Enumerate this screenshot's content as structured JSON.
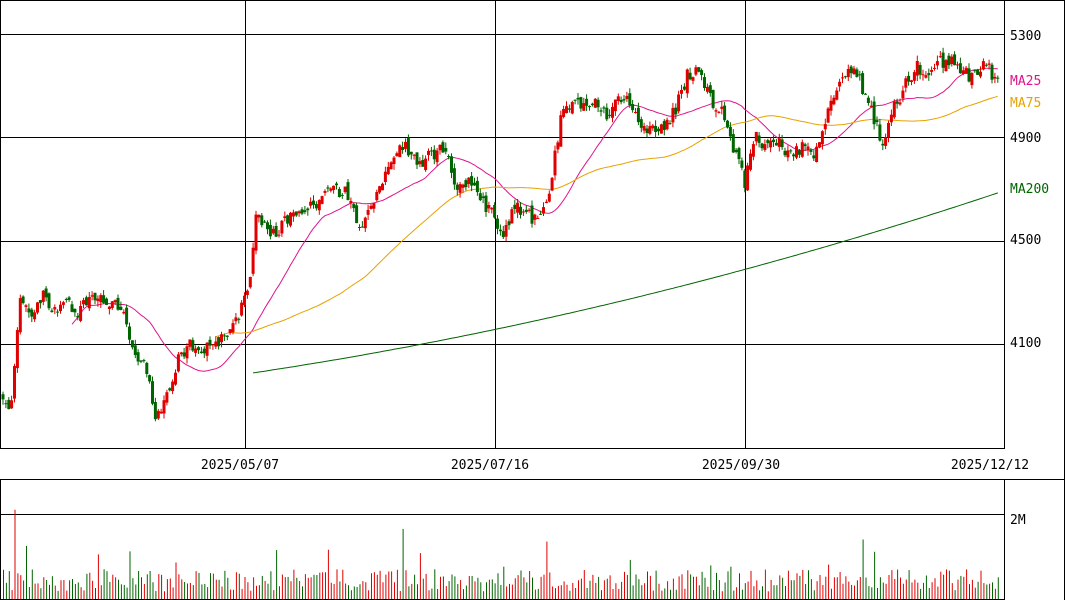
{
  "chart_data": {
    "type": "candlestick",
    "price_axis": {
      "ticks": [
        "5300",
        "4900",
        "4500",
        "4100"
      ],
      "tick_values": [
        5300,
        4900,
        4500,
        4100
      ],
      "range": [
        3700,
        5430
      ]
    },
    "x_axis": {
      "dates": [
        "2025/05/07",
        "2025/07/16",
        "2025/09/30",
        "2025/12/12"
      ]
    },
    "volume_axis": {
      "ticks": [
        "2M"
      ],
      "tick_values": [
        2000000
      ],
      "range": [
        0,
        2800000
      ]
    },
    "legend": [
      {
        "name": "MA25",
        "color": "#e0148c"
      },
      {
        "name": "MA75",
        "color": "#e8a200"
      },
      {
        "name": "MA200",
        "color": "#006400"
      }
    ],
    "colors": {
      "up": "#e00000",
      "down": "#006400",
      "volume": "#333333",
      "grid": "#000000"
    },
    "anchors": [
      [
        0,
        3880
      ],
      [
        3,
        3860
      ],
      [
        6,
        4270
      ],
      [
        10,
        4230
      ],
      [
        14,
        4280
      ],
      [
        18,
        4240
      ],
      [
        22,
        4260
      ],
      [
        26,
        4230
      ],
      [
        30,
        4270
      ],
      [
        34,
        4280
      ],
      [
        38,
        4270
      ],
      [
        41,
        4230
      ],
      [
        46,
        4080
      ],
      [
        50,
        4000
      ],
      [
        53,
        3800
      ],
      [
        57,
        3900
      ],
      [
        61,
        4040
      ],
      [
        65,
        4100
      ],
      [
        70,
        4080
      ],
      [
        75,
        4100
      ],
      [
        80,
        4170
      ],
      [
        84,
        4270
      ],
      [
        86,
        4350
      ],
      [
        88,
        4600
      ],
      [
        93,
        4520
      ],
      [
        99,
        4580
      ],
      [
        104,
        4600
      ],
      [
        110,
        4650
      ],
      [
        115,
        4700
      ],
      [
        120,
        4680
      ],
      [
        124,
        4530
      ],
      [
        128,
        4620
      ],
      [
        132,
        4740
      ],
      [
        136,
        4830
      ],
      [
        140,
        4870
      ],
      [
        145,
        4800
      ],
      [
        150,
        4840
      ],
      [
        154,
        4870
      ],
      [
        158,
        4700
      ],
      [
        162,
        4720
      ],
      [
        166,
        4670
      ],
      [
        170,
        4600
      ],
      [
        174,
        4520
      ],
      [
        178,
        4640
      ],
      [
        182,
        4600
      ],
      [
        186,
        4580
      ],
      [
        190,
        4680
      ],
      [
        194,
        4980
      ],
      [
        198,
        5030
      ],
      [
        202,
        5010
      ],
      [
        206,
        5040
      ],
      [
        210,
        4990
      ],
      [
        214,
        5060
      ],
      [
        218,
        5040
      ],
      [
        222,
        4930
      ],
      [
        226,
        4940
      ],
      [
        230,
        4920
      ],
      [
        234,
        5010
      ],
      [
        238,
        5140
      ],
      [
        242,
        5170
      ],
      [
        246,
        5050
      ],
      [
        250,
        5000
      ],
      [
        254,
        4860
      ],
      [
        258,
        4730
      ],
      [
        262,
        4900
      ],
      [
        266,
        4860
      ],
      [
        270,
        4880
      ],
      [
        274,
        4830
      ],
      [
        278,
        4860
      ],
      [
        282,
        4830
      ],
      [
        286,
        4950
      ],
      [
        290,
        5100
      ],
      [
        294,
        5180
      ],
      [
        298,
        5120
      ],
      [
        302,
        5000
      ],
      [
        306,
        4870
      ],
      [
        310,
        5020
      ],
      [
        314,
        5100
      ],
      [
        318,
        5170
      ],
      [
        322,
        5150
      ],
      [
        326,
        5190
      ],
      [
        330,
        5200
      ],
      [
        334,
        5150
      ],
      [
        338,
        5130
      ],
      [
        342,
        5180
      ],
      [
        344,
        5140
      ],
      [
        346,
        5100
      ]
    ],
    "volume_spikes": [
      [
        4,
        2100000
      ],
      [
        8,
        1250000
      ],
      [
        33,
        1050000
      ],
      [
        44,
        1120000
      ],
      [
        60,
        860000
      ],
      [
        95,
        1150000
      ],
      [
        113,
        1160000
      ],
      [
        139,
        1650000
      ],
      [
        145,
        1080000
      ],
      [
        174,
        760000
      ],
      [
        189,
        1350000
      ],
      [
        218,
        920000
      ],
      [
        246,
        790000
      ],
      [
        253,
        760000
      ],
      [
        287,
        810000
      ],
      [
        299,
        1400000
      ],
      [
        303,
        1110000
      ]
    ],
    "ma200_range": [
      3990,
      4685
    ],
    "plotted_sessions": 347
  }
}
